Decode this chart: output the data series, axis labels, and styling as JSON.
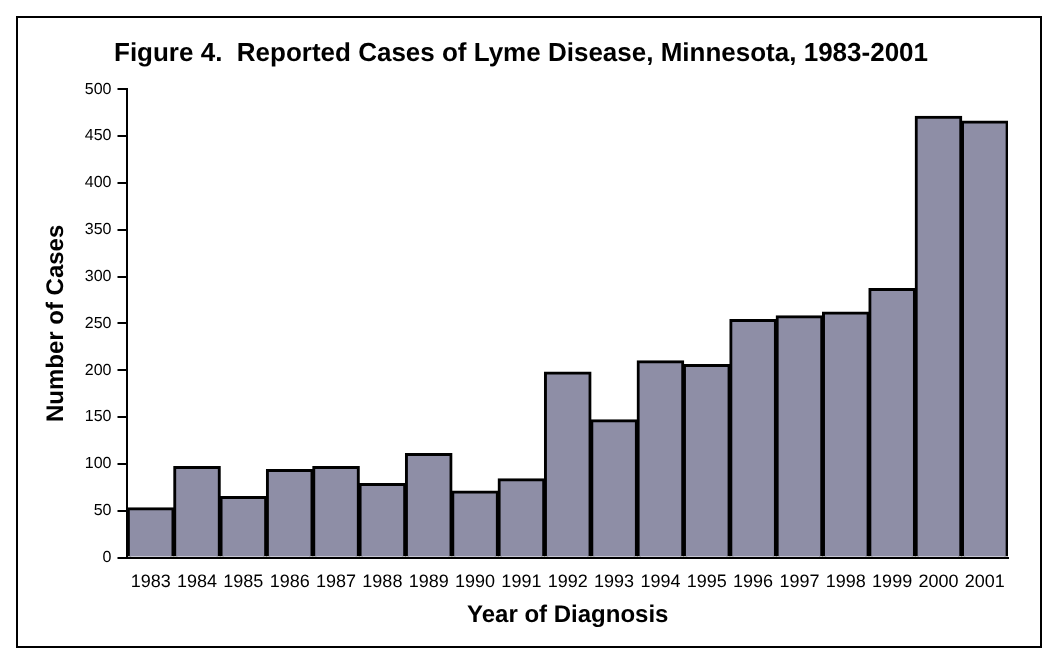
{
  "chart_data": {
    "type": "bar",
    "title": "Figure 4.  Reported Cases of Lyme Disease, Minnesota, 1983-2001",
    "xlabel": "Year of Diagnosis",
    "ylabel": "Number of Cases",
    "categories": [
      "1983",
      "1984",
      "1985",
      "1986",
      "1987",
      "1988",
      "1989",
      "1990",
      "1991",
      "1992",
      "1993",
      "1994",
      "1995",
      "1996",
      "1997",
      "1998",
      "1999",
      "2000",
      "2001"
    ],
    "values": [
      53,
      97,
      65,
      94,
      97,
      79,
      111,
      71,
      84,
      198,
      147,
      210,
      206,
      254,
      258,
      262,
      287,
      471,
      466
    ],
    "color": "#8e8ea6",
    "ylim": [
      0,
      500
    ],
    "yticks": [
      0,
      50,
      100,
      150,
      200,
      250,
      300,
      350,
      400,
      450,
      500
    ],
    "grid": false,
    "legend": false
  }
}
